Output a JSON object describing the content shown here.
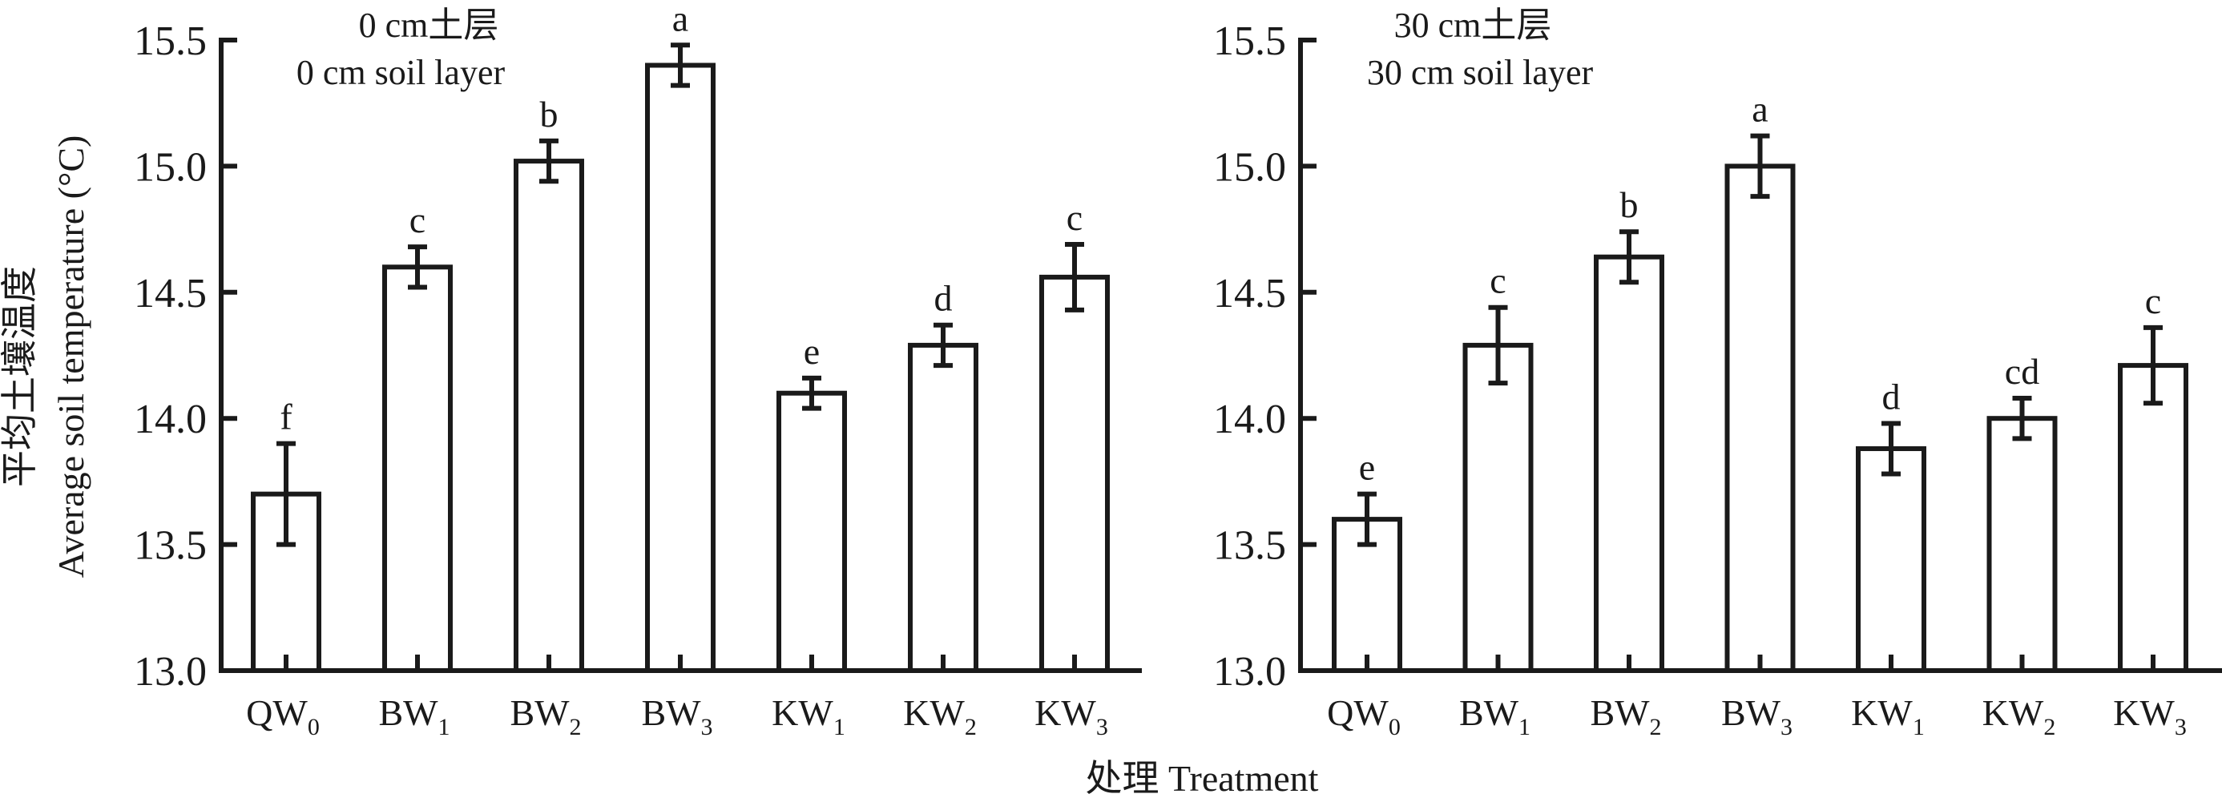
{
  "chart_data": [
    {
      "type": "bar",
      "title": "0 cm土层",
      "subtitle": "0 cm soil layer",
      "xlabel": "处理 Treatment",
      "ylabel_cn": "平均土壤温度",
      "ylabel_en": "Average soil temperature (°C)",
      "ylim": [
        13.0,
        15.5
      ],
      "yticks": [
        "13.0",
        "13.5",
        "14.0",
        "14.5",
        "15.0",
        "15.5"
      ],
      "grid": false,
      "categories": [
        {
          "base": "QW",
          "sub": "0"
        },
        {
          "base": "BW",
          "sub": "1"
        },
        {
          "base": "BW",
          "sub": "2"
        },
        {
          "base": "BW",
          "sub": "3"
        },
        {
          "base": "KW",
          "sub": "1"
        },
        {
          "base": "KW",
          "sub": "2"
        },
        {
          "base": "KW",
          "sub": "3"
        }
      ],
      "values": [
        13.7,
        14.6,
        15.02,
        15.4,
        14.1,
        14.29,
        14.56
      ],
      "errors": [
        0.2,
        0.08,
        0.08,
        0.08,
        0.06,
        0.08,
        0.13
      ],
      "significance": [
        "f",
        "c",
        "b",
        "a",
        "e",
        "d",
        "c"
      ]
    },
    {
      "type": "bar",
      "title": "30 cm土层",
      "subtitle": "30 cm soil layer",
      "ylim": [
        13.0,
        15.5
      ],
      "yticks": [
        "13.0",
        "13.5",
        "14.0",
        "14.5",
        "15.0",
        "15.5"
      ],
      "grid": false,
      "categories": [
        {
          "base": "QW",
          "sub": "0"
        },
        {
          "base": "BW",
          "sub": "1"
        },
        {
          "base": "BW",
          "sub": "2"
        },
        {
          "base": "BW",
          "sub": "3"
        },
        {
          "base": "KW",
          "sub": "1"
        },
        {
          "base": "KW",
          "sub": "2"
        },
        {
          "base": "KW",
          "sub": "3"
        }
      ],
      "values": [
        13.6,
        14.29,
        14.64,
        15.0,
        13.88,
        14.0,
        14.21
      ],
      "errors": [
        0.1,
        0.15,
        0.1,
        0.12,
        0.1,
        0.08,
        0.15
      ],
      "significance": [
        "e",
        "c",
        "b",
        "a",
        "d",
        "cd",
        "c"
      ]
    }
  ]
}
